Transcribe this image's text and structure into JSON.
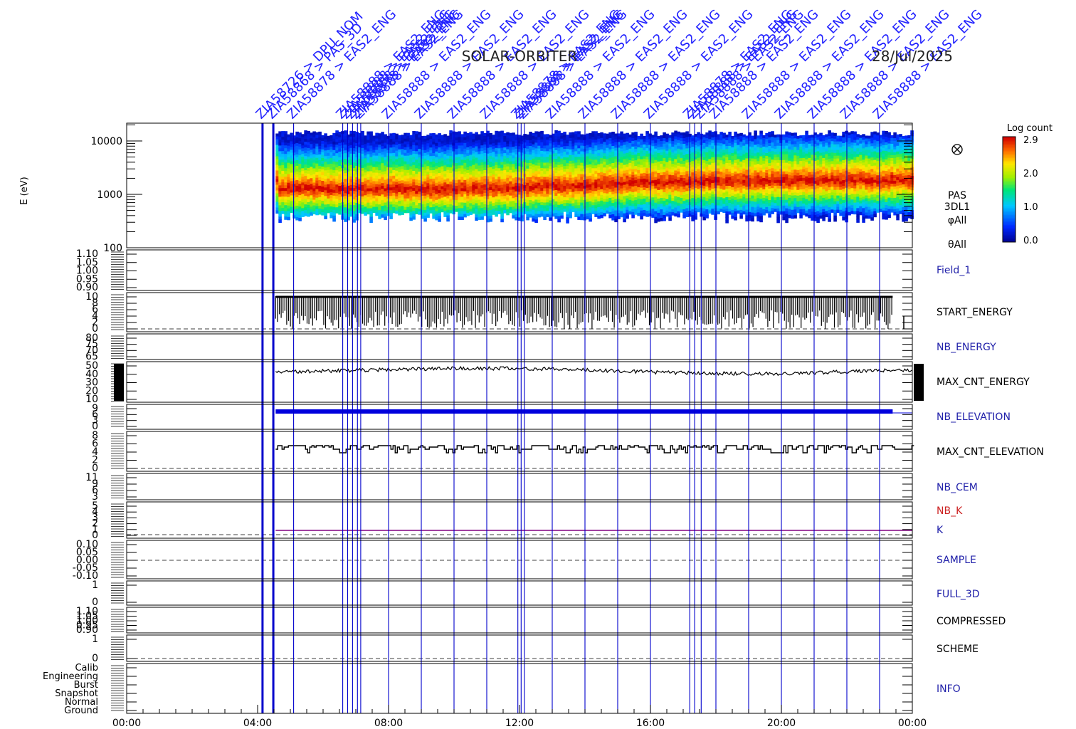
{
  "header": {
    "title": "SOLAR-ORBITER",
    "date": "28/Jul/2025"
  },
  "colors": {
    "event_line": "#0000cc",
    "event_label": "#2222ff",
    "axis": "#000000",
    "k_line": "#800080",
    "nb_k_label": "#cc2222",
    "nb_elevation": "#0000dd"
  },
  "chart_data": {
    "type": "heatmap",
    "x_axis": {
      "range": [
        "00:00",
        "24:00"
      ],
      "tick_labels": [
        "00:00",
        "04:00",
        "08:00",
        "12:00",
        "16:00",
        "20:00",
        "00:00"
      ]
    },
    "event_markers": {
      "hours": [
        4.15,
        4.48,
        5.1,
        6.6,
        6.75,
        6.9,
        7.05,
        7.15,
        8.0,
        9.0,
        10.0,
        11.0,
        11.95,
        12.05,
        12.15,
        13.0,
        14.0,
        15.0,
        16.0,
        17.2,
        17.35,
        17.55,
        18.0,
        19.0,
        20.0,
        21.0,
        22.0,
        23.0
      ],
      "labels": [
        "ZIA58726 > DPU_NOM",
        "ZIA58868 > PAS_3D",
        "ZIA58878 > EAS2_ENG",
        "ZIA58888 > EAS2_ENG",
        "ZIA58888 > EAS2_ENG",
        "ZIA58888 > EAS2_ENG",
        "ZIA58878 > EAS2_ENG",
        "ZIA58888 > EAS2_ENG",
        "ZIA58888 > EAS2_ENG",
        "ZIA58888 > EAS2_ENG",
        "ZIA58888 > EAS2_ENG",
        "ZIA58888 > EAS2_ENG",
        "ZIA58878 > EAS2_ENG",
        "ZIA58888 > EAS2_ENG",
        "ZIA58888 > EAS2_ENG",
        "ZIA58888 > EAS2_ENG",
        "ZIA58888 > EAS2_ENG",
        "ZIA58888 > EAS2_ENG",
        "ZIA58888 > EAS2_ENG",
        "ZIA58878 > EAS2_ENG",
        "ZIA58888 > EAS2_ENG",
        "ZIA58888 > EAS2_ENG",
        "ZIA58888 > EAS2_ENG",
        "ZIA58888 > EAS2_ENG",
        "ZIA58888 > EAS2_ENG",
        "ZIA58888 > EAS2_ENG",
        "ZIA58888 > EAS2_ENG",
        "ZIA58888 > EAS2_ENG"
      ]
    },
    "spectrogram": {
      "ylabel": "E (eV)",
      "y_tick_labels": [
        "10000",
        "1000",
        "100"
      ],
      "side_labels": [
        "PAS",
        "3DL1",
        "φAll",
        "θAll"
      ],
      "colorbar": {
        "title": "Log count",
        "tick_labels": [
          "2.9",
          "2.0",
          "1.0",
          "0.0"
        ]
      },
      "data_start_hour": 4.55,
      "data_end_hour": 24.0,
      "peak_energy_eV": [
        1350,
        1350,
        1300,
        1350,
        1300,
        1300,
        1350,
        1400,
        1500,
        1550,
        1700,
        1750,
        1800,
        1850,
        1900,
        1900
      ],
      "peak_energy_hours": [
        4.6,
        6.0,
        7.0,
        8.0,
        9.0,
        10.0,
        11.0,
        12.0,
        13.0,
        14.0,
        15.0,
        16.0,
        17.0,
        18.0,
        20.0,
        24.0
      ]
    },
    "panels": [
      {
        "name": "Field_1",
        "color": "#2222aa",
        "y_tick_labels": [
          "1.10",
          "1.05",
          "1.00",
          "0.95",
          "0.90"
        ]
      },
      {
        "name": "START_ENERGY",
        "color": "#000000",
        "y_tick_labels": [
          "10",
          "8",
          "6",
          "4",
          "2",
          "0"
        ]
      },
      {
        "name": "NB_ENERGY",
        "color": "#2222aa",
        "y_tick_labels": [
          "80",
          "75",
          "70",
          "65"
        ]
      },
      {
        "name": "MAX_CNT_ENERGY",
        "color": "#000000",
        "y_tick_labels": [
          "50",
          "40",
          "30",
          "20",
          "10"
        ]
      },
      {
        "name": "NB_ELEVATION",
        "color": "#2222aa",
        "y_tick_labels": [
          "9",
          "6",
          "3",
          "0"
        ]
      },
      {
        "name": "MAX_CNT_ELEVATION",
        "color": "#000000",
        "y_tick_labels": [
          "8",
          "6",
          "4",
          "2",
          "0"
        ]
      },
      {
        "name": "NB_CEM",
        "color": "#2222aa",
        "y_tick_labels": [
          "11",
          "9",
          "6",
          "3"
        ]
      },
      {
        "name": "NB_K",
        "color": "#cc2222",
        "y_tick_labels": [
          "5",
          "4",
          "3",
          "2",
          "1",
          "0"
        ]
      },
      {
        "name": "SAMPLE",
        "color": "#2222aa",
        "y_tick_labels": [
          "0.10",
          "0.05",
          "0.00",
          "-0.05",
          "-0.10"
        ]
      },
      {
        "name": "FULL_3D",
        "color": "#2222aa",
        "y_tick_labels": [
          "1",
          "0"
        ]
      },
      {
        "name": "COMPRESSED",
        "color": "#000000",
        "y_tick_labels": [
          "1.10",
          "1.05",
          "1.00",
          "0.95",
          "0.90"
        ]
      },
      {
        "name": "SCHEME",
        "color": "#000000",
        "y_tick_labels": [
          "1",
          "0"
        ]
      },
      {
        "name": "INFO",
        "color": "#2222aa",
        "y_tick_labels": [
          "Calib",
          "Engineering",
          "Burst",
          "Snapshot",
          "Normal",
          "Ground"
        ]
      }
    ],
    "k_label": "K",
    "max_cnt_energy_level": 42,
    "max_cnt_elevation_level": 4.5
  }
}
